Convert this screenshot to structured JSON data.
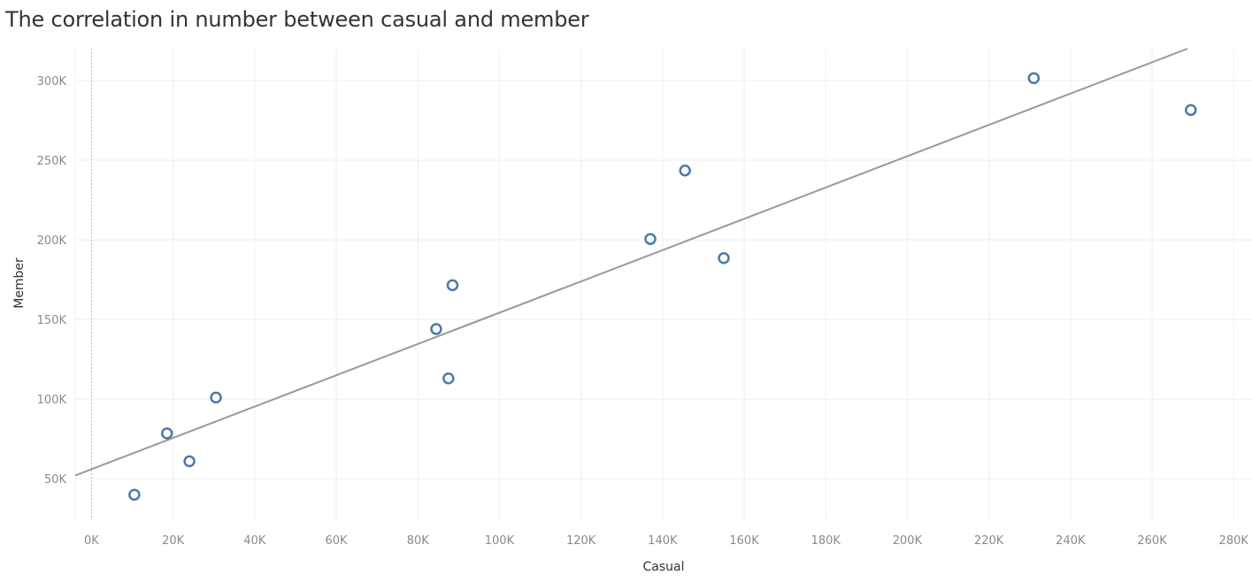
{
  "chart_data": {
    "type": "scatter",
    "title": "The correlation in number between casual and member",
    "xlabel": "Casual",
    "ylabel": "Member",
    "xlim": [
      -4000,
      284500
    ],
    "ylim": [
      24000,
      320000
    ],
    "x_ticks": [
      0,
      20000,
      40000,
      60000,
      80000,
      100000,
      120000,
      140000,
      160000,
      180000,
      200000,
      220000,
      240000,
      260000,
      280000
    ],
    "x_tick_labels": [
      "0K",
      "20K",
      "40K",
      "60K",
      "80K",
      "100K",
      "120K",
      "140K",
      "160K",
      "180K",
      "200K",
      "220K",
      "240K",
      "260K",
      "280K"
    ],
    "y_ticks": [
      50000,
      100000,
      150000,
      200000,
      250000,
      300000
    ],
    "y_tick_labels": [
      "50K",
      "100K",
      "150K",
      "200K",
      "250K",
      "300K"
    ],
    "grid": true,
    "points": [
      {
        "x": 10500,
        "y": 40000
      },
      {
        "x": 18500,
        "y": 78500
      },
      {
        "x": 24000,
        "y": 61000
      },
      {
        "x": 30500,
        "y": 101000
      },
      {
        "x": 84500,
        "y": 144000
      },
      {
        "x": 87500,
        "y": 113000
      },
      {
        "x": 88500,
        "y": 171500
      },
      {
        "x": 137000,
        "y": 200500
      },
      {
        "x": 145500,
        "y": 243500
      },
      {
        "x": 155000,
        "y": 188500
      },
      {
        "x": 231000,
        "y": 301500
      },
      {
        "x": 269500,
        "y": 281500
      }
    ],
    "trend_line": {
      "slope": 0.9825,
      "intercept": 56000
    },
    "colors": {
      "point": "#4e79a7",
      "trend": "#999999",
      "grid": "#efefef",
      "zero_line": "#bbbbbb"
    }
  }
}
